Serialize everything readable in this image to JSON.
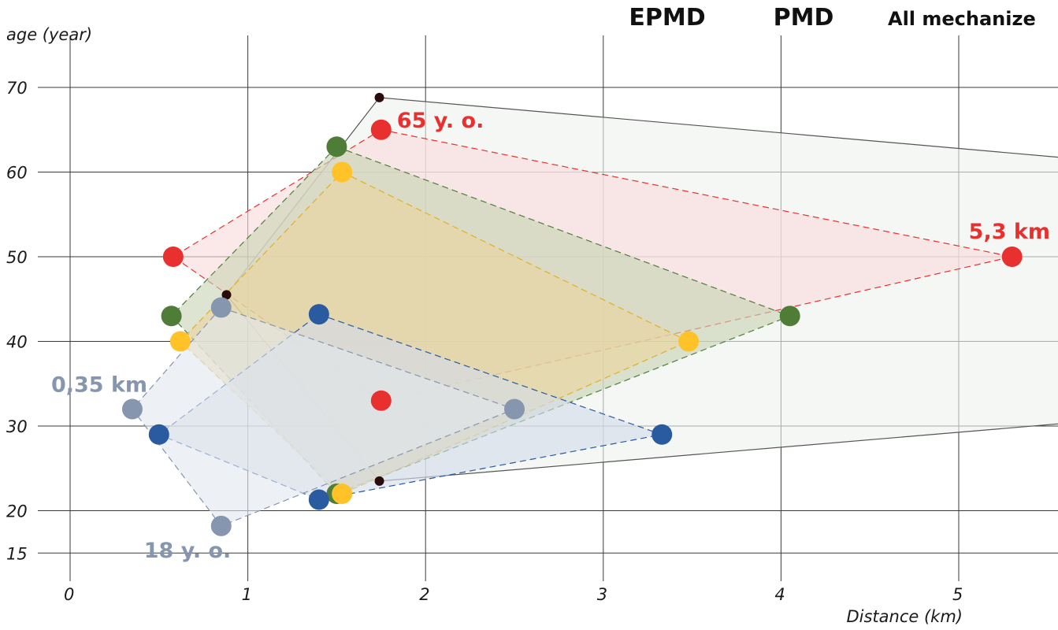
{
  "chart_data": {
    "type": "scatter",
    "title": "",
    "xlabel": "Distance (km)",
    "ylabel": "age (year)",
    "xlim": [
      -0.3,
      5.6
    ],
    "ylim": [
      15,
      75
    ],
    "grid": true,
    "x_ticks": [
      {
        "value": 0,
        "label": "0"
      },
      {
        "value": 1,
        "label": "1"
      },
      {
        "value": 2,
        "label": "2"
      },
      {
        "value": 3,
        "label": "3"
      },
      {
        "value": 4,
        "label": "4"
      },
      {
        "value": 5,
        "label": "5"
      }
    ],
    "y_ticks": [
      {
        "value": 15,
        "label": "15"
      },
      {
        "value": 20,
        "label": "20"
      },
      {
        "value": 30,
        "label": "30"
      },
      {
        "value": 40,
        "label": "40"
      },
      {
        "value": 50,
        "label": "50"
      },
      {
        "value": 60,
        "label": "60"
      },
      {
        "value": 70,
        "label": "70"
      }
    ],
    "headers": [
      "EPMD",
      "PMD",
      "All mechanize"
    ],
    "colors": {
      "all_mechanized": "#2b0c0c",
      "red": "#e8312f",
      "green": "#4f7d38",
      "yellow": "#ffc229",
      "blue": "#2a5aa0",
      "gray": "#8696ae"
    },
    "series": [
      {
        "color_key": "all_mechanized",
        "fill": "#eef2ee",
        "stroke": "#555555",
        "dashed": false,
        "marker": "small",
        "points": [
          [
            1.74,
            68.8
          ],
          [
            5.7,
            61.5
          ],
          [
            5.7,
            30.5
          ],
          [
            1.74,
            23.5
          ],
          [
            0.88,
            45.5
          ]
        ]
      },
      {
        "color_key": "red",
        "fill": "#f8dcdc",
        "stroke": "#e8312f",
        "dashed": true,
        "marker": "large",
        "points": [
          [
            1.75,
            65
          ],
          [
            5.3,
            50
          ],
          [
            1.75,
            33
          ],
          [
            0.58,
            50
          ]
        ]
      },
      {
        "color_key": "green",
        "fill": "#c8d4b4",
        "stroke": "#4f7d38",
        "dashed": true,
        "marker": "large",
        "points": [
          [
            1.5,
            63
          ],
          [
            4.05,
            43
          ],
          [
            1.5,
            22
          ],
          [
            0.57,
            43
          ]
        ]
      },
      {
        "color_key": "yellow",
        "fill": "#ead49c",
        "stroke": "#e0b026",
        "dashed": true,
        "marker": "large",
        "points": [
          [
            1.53,
            60
          ],
          [
            3.48,
            40
          ],
          [
            1.53,
            22
          ],
          [
            0.62,
            40
          ]
        ]
      },
      {
        "color_key": "blue",
        "fill": "#d4dcea",
        "stroke": "#2a5aa0",
        "dashed": true,
        "marker": "large",
        "points": [
          [
            1.4,
            43.2
          ],
          [
            3.33,
            29
          ],
          [
            1.4,
            21.3
          ],
          [
            0.5,
            29
          ]
        ]
      },
      {
        "color_key": "gray",
        "fill": "#e2e6ee",
        "stroke": "#8696ae",
        "dashed": true,
        "marker": "large",
        "points": [
          [
            0.85,
            44
          ],
          [
            2.5,
            32
          ],
          [
            0.85,
            18.2
          ],
          [
            0.35,
            32
          ]
        ]
      }
    ],
    "annotations": [
      {
        "text": "65 y. o.",
        "color_key": "red",
        "x": 1.75,
        "y": 65
      },
      {
        "text": "5,3 km",
        "color_key": "red",
        "x": 5.3,
        "y": 50
      },
      {
        "text": "0,35 km",
        "color_key": "gray",
        "x": 0.35,
        "y": 32
      },
      {
        "text": "18 y. o.",
        "color_key": "gray",
        "x": 0.85,
        "y": 18.2
      }
    ]
  }
}
